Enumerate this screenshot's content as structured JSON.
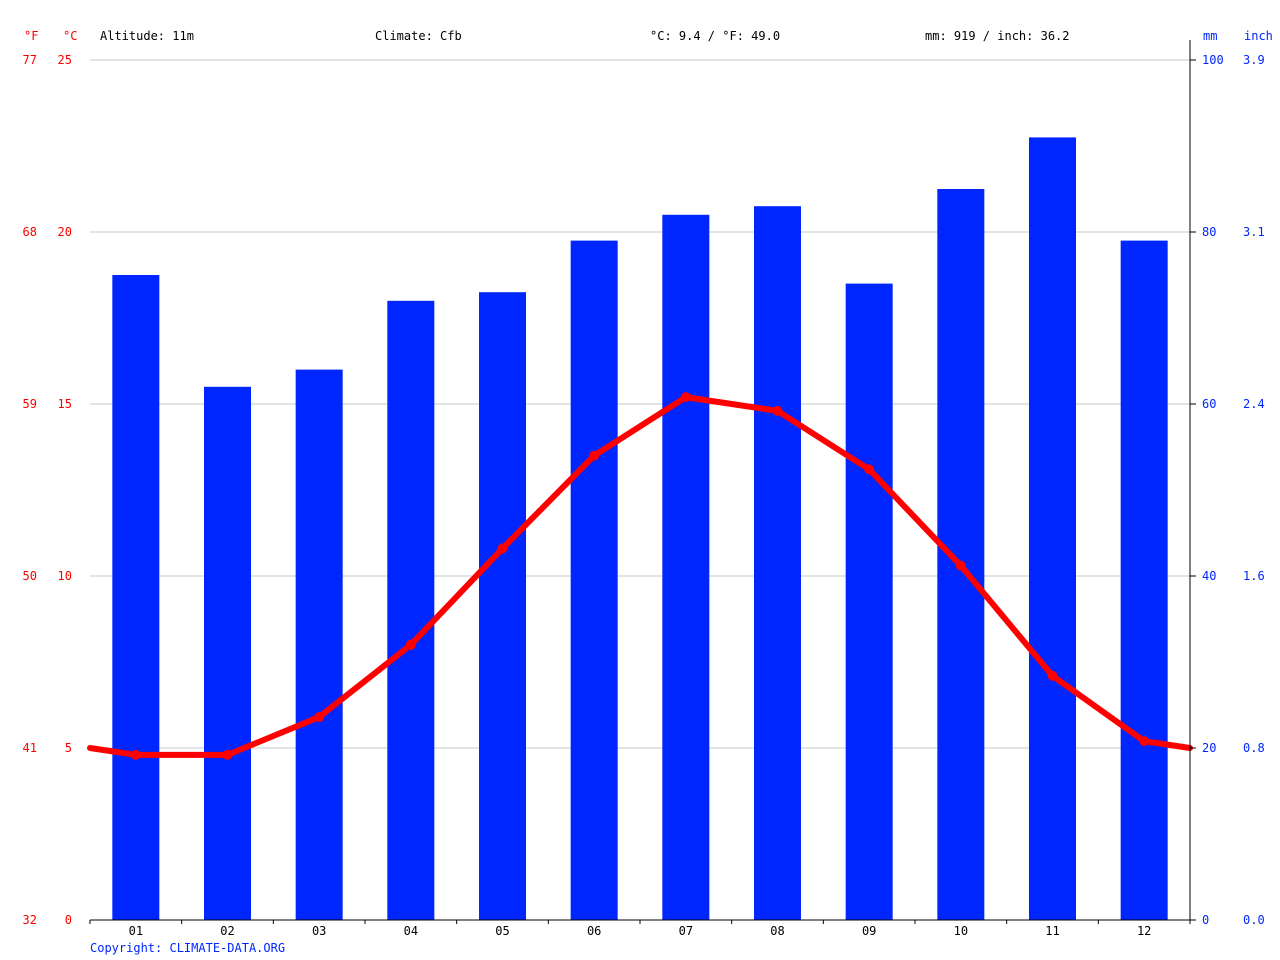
{
  "header": {
    "altitude": "Altitude: 11m",
    "climate": "Climate: Cfb",
    "temp_summary": "°C: 9.4 / °F: 49.0",
    "precip_summary": "mm: 919 / inch: 36.2"
  },
  "axes": {
    "f_unit": "°F",
    "c_unit": "°C",
    "mm_unit": "mm",
    "inch_unit": "inch",
    "celsius_ticks": [
      "0",
      "5",
      "10",
      "15",
      "20",
      "25"
    ],
    "fahrenheit_ticks": [
      "32",
      "41",
      "50",
      "59",
      "68",
      "77"
    ],
    "mm_ticks": [
      "0",
      "20",
      "40",
      "60",
      "80",
      "100"
    ],
    "inch_ticks": [
      "0.0",
      "0.8",
      "1.6",
      "2.4",
      "3.1",
      "3.9"
    ]
  },
  "copyright": "Copyright: CLIMATE-DATA.ORG",
  "colors": {
    "precip_bar": "#0026ff",
    "temp_line": "#ff0000",
    "grid": "#c8c8c8",
    "axis": "#000000"
  },
  "chart_data": {
    "type": "bar",
    "categories": [
      "01",
      "02",
      "03",
      "04",
      "05",
      "06",
      "07",
      "08",
      "09",
      "10",
      "11",
      "12"
    ],
    "series": [
      {
        "type": "bar",
        "axis": "right",
        "unit": "mm",
        "values": [
          75,
          62,
          64,
          72,
          73,
          79,
          82,
          83,
          74,
          85,
          91,
          79
        ]
      },
      {
        "type": "line",
        "axis": "left",
        "unit": "°C",
        "values": [
          4.8,
          4.8,
          5.9,
          8.0,
          10.8,
          13.5,
          15.2,
          14.8,
          13.1,
          10.3,
          7.1,
          5.2
        ]
      }
    ],
    "ylim_left": [
      0,
      25
    ],
    "ylim_right": [
      0,
      100
    ],
    "grid": true
  }
}
